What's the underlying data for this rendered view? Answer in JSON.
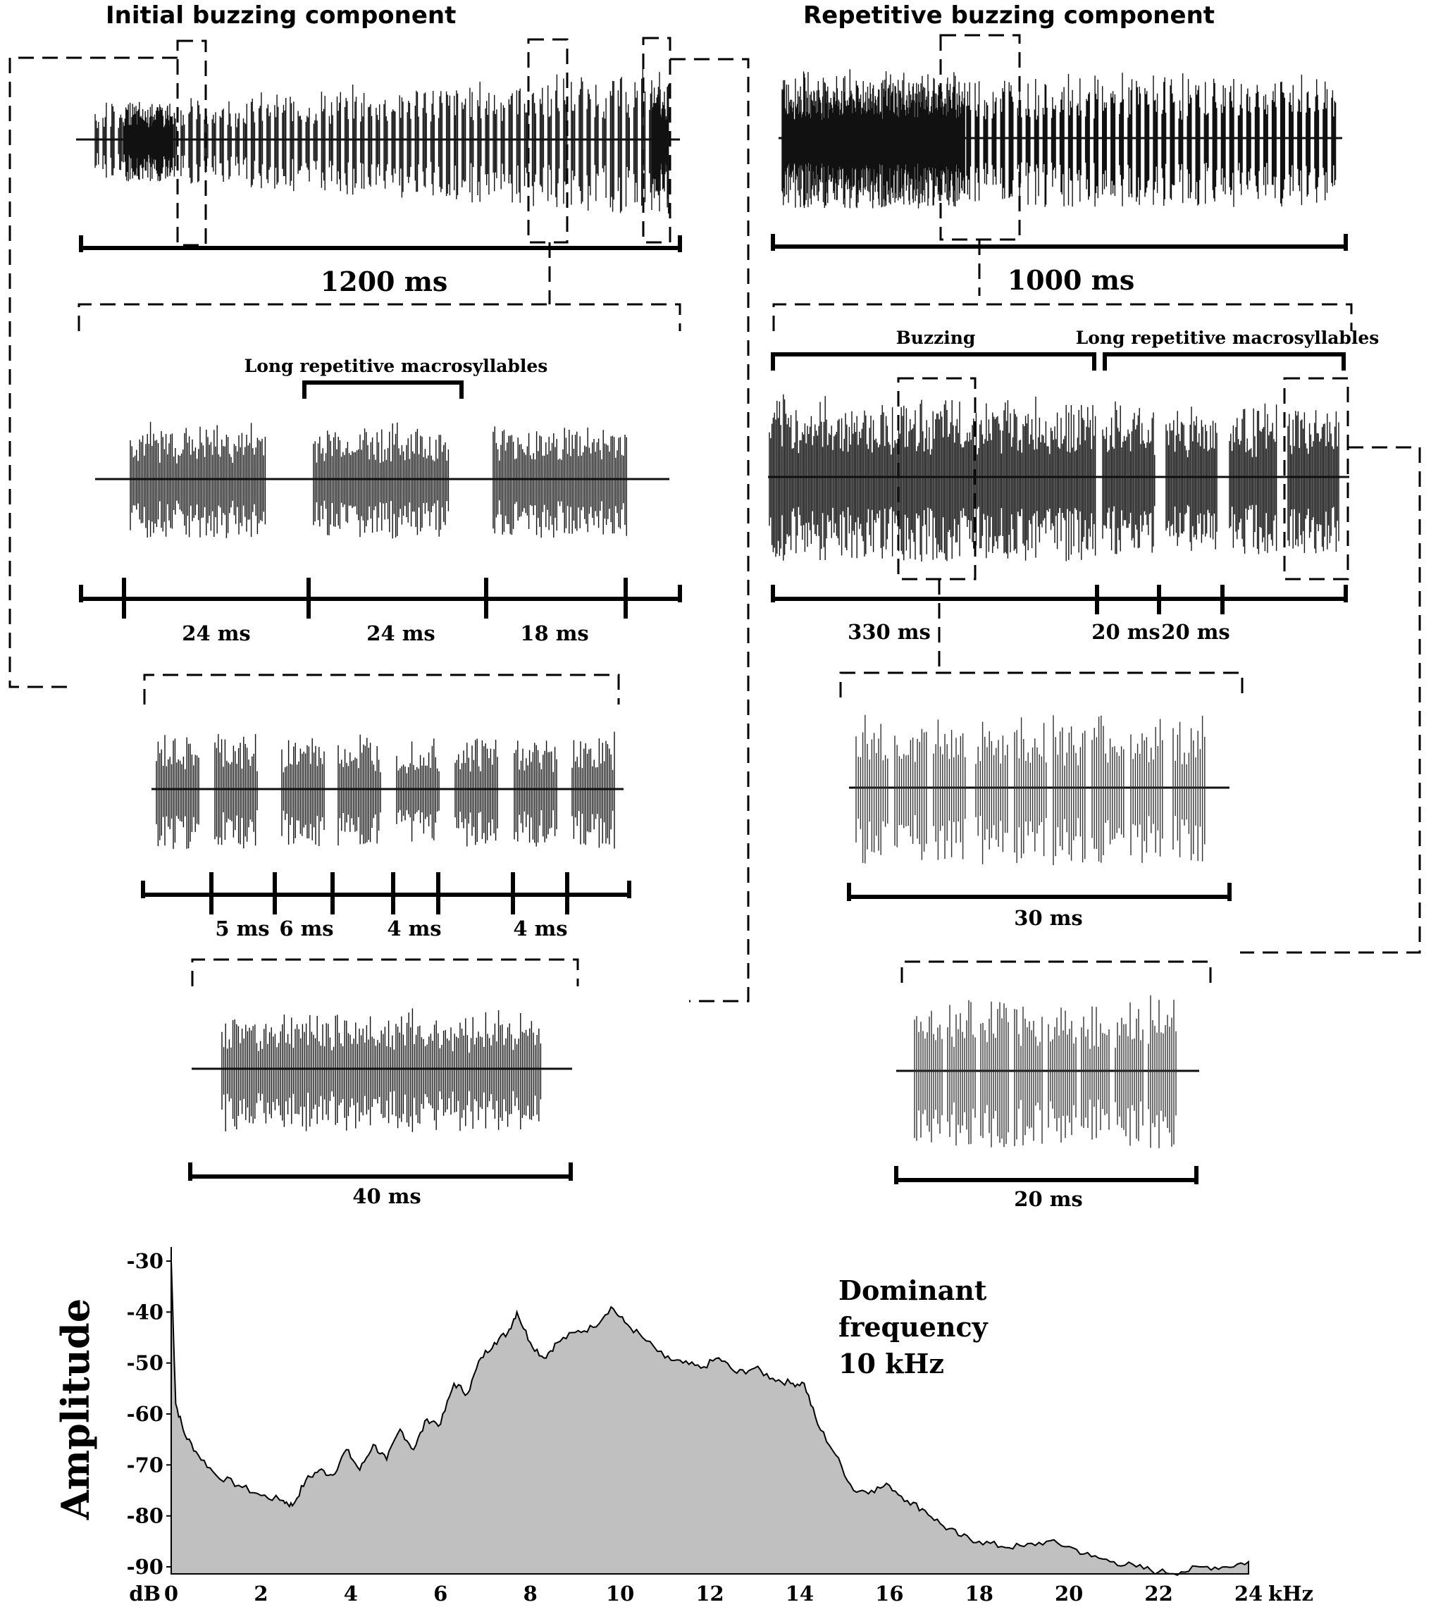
{
  "headings": {
    "initial": "Initial buzzing component",
    "repetitive": "Repetitive buzzing component"
  },
  "left": {
    "overview_scale": "1200 ms",
    "macro_label": "Long repetitive macrosyllables",
    "macro_durations": [
      "24 ms",
      "24 ms",
      "18 ms"
    ],
    "syllable_durations": [
      "5 ms",
      "6 ms",
      "4 ms",
      "4 ms"
    ],
    "detail_scale": "40 ms"
  },
  "right": {
    "overview_scale": "1000 ms",
    "section_labels": [
      "Buzzing",
      "Long repetitive macrosyllables"
    ],
    "section_durations": [
      "330 ms",
      "20 ms",
      "20 ms"
    ],
    "detail1_scale": "30 ms",
    "detail2_scale": "20 ms"
  },
  "spectrum": {
    "ylabel": "Amplitude",
    "y_unit": "dB",
    "x_unit": "kHz",
    "annotation": [
      "Dominant",
      "frequency",
      "10 kHz"
    ],
    "colors": {
      "fill": "#c0c0c0",
      "stroke": "#000000",
      "wave": "#111111"
    }
  },
  "chart_data": {
    "type": "area",
    "ylabel": "Amplitude",
    "xunit": "kHz",
    "yunit": "dB",
    "xlim": [
      0,
      24
    ],
    "ylim": [
      -90,
      -30
    ],
    "yticks": [
      -30,
      -40,
      -50,
      -60,
      -70,
      -80,
      -90
    ],
    "xticks": [
      0,
      2,
      4,
      6,
      8,
      10,
      12,
      14,
      16,
      18,
      20,
      22,
      24
    ],
    "x": [
      0,
      0.1,
      0.3,
      0.6,
      1.0,
      1.5,
      2.0,
      2.5,
      2.7,
      3.0,
      3.3,
      3.6,
      3.9,
      4.2,
      4.5,
      4.8,
      5.1,
      5.4,
      5.7,
      6.0,
      6.3,
      6.6,
      6.9,
      7.2,
      7.5,
      7.7,
      8.0,
      8.3,
      8.6,
      9.0,
      9.4,
      9.8,
      10.1,
      10.5,
      11.0,
      11.4,
      11.8,
      12.2,
      12.6,
      13.0,
      13.4,
      13.8,
      14.1,
      14.4,
      14.8,
      15.2,
      15.6,
      16.0,
      16.4,
      16.8,
      17.2,
      17.6,
      18.0,
      18.5,
      19.0,
      19.5,
      20.0,
      20.5,
      21.0,
      21.5,
      22.0,
      22.5,
      23.0,
      23.5,
      24.0
    ],
    "y": [
      -30,
      -58,
      -64,
      -68,
      -72,
      -74,
      -76,
      -77,
      -78,
      -73,
      -71,
      -72,
      -67,
      -71,
      -66,
      -69,
      -63,
      -67,
      -61,
      -62,
      -54,
      -56,
      -49,
      -46,
      -44,
      -40,
      -46,
      -49,
      -46,
      -44,
      -43,
      -39,
      -42,
      -45,
      -49,
      -50,
      -51,
      -49,
      -52,
      -51,
      -53,
      -54,
      -54,
      -62,
      -68,
      -75,
      -75,
      -74,
      -77,
      -79,
      -82,
      -84,
      -85,
      -86,
      -86,
      -85,
      -86,
      -88,
      -89,
      -90,
      -91,
      -91,
      -90,
      -90,
      -89
    ]
  }
}
